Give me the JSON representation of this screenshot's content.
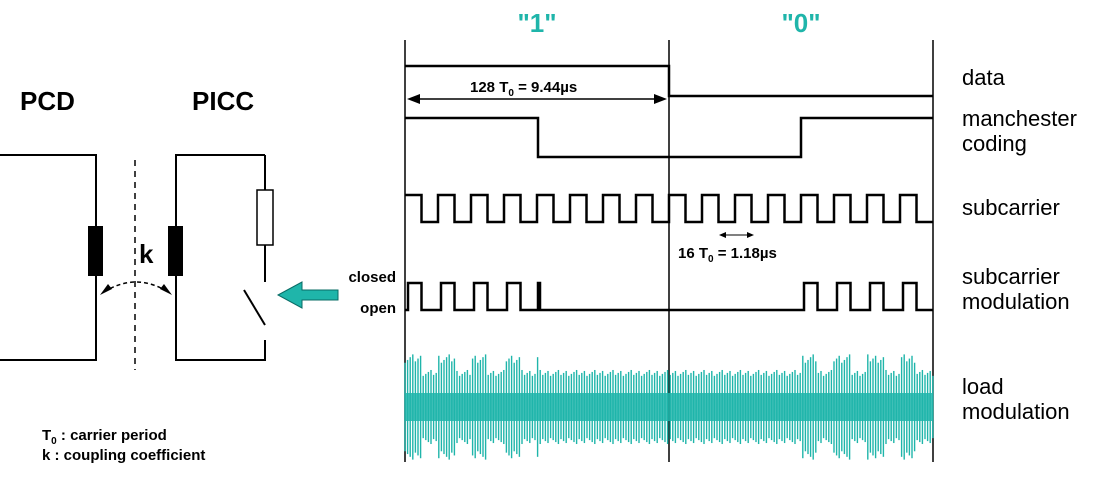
{
  "circuit": {
    "pcd_label": "PCD",
    "picc_label": "PICC",
    "coupling_label": "k"
  },
  "bits": [
    "\"1\"",
    "\"0\""
  ],
  "bit_pattern": [
    1,
    0
  ],
  "signal_labels": {
    "data": "data",
    "manchester_line1": "manchester",
    "manchester_line2": "coding",
    "subcarrier": "subcarrier",
    "modulation_line1": "subcarrier",
    "modulation_line2": "modulation",
    "load_line1": "load",
    "load_line2": "modulation"
  },
  "switch_states": {
    "closed": "closed",
    "open": "open"
  },
  "annotations": {
    "bit_period_prefix": "128 T",
    "bit_period_sub": "0",
    "bit_period_suffix": " = 9.44µs",
    "subcarrier_period_prefix": "16 T",
    "subcarrier_period_sub": "0",
    "subcarrier_period_suffix": " = 1.18µs"
  },
  "legend": {
    "t0_sym": "T",
    "t0_sub": "0",
    "t0_desc": " : carrier period",
    "k_sym": "k",
    "k_desc": " : coupling coefficient"
  },
  "colors": {
    "accent": "#1fb5aa",
    "line": "#000000"
  }
}
